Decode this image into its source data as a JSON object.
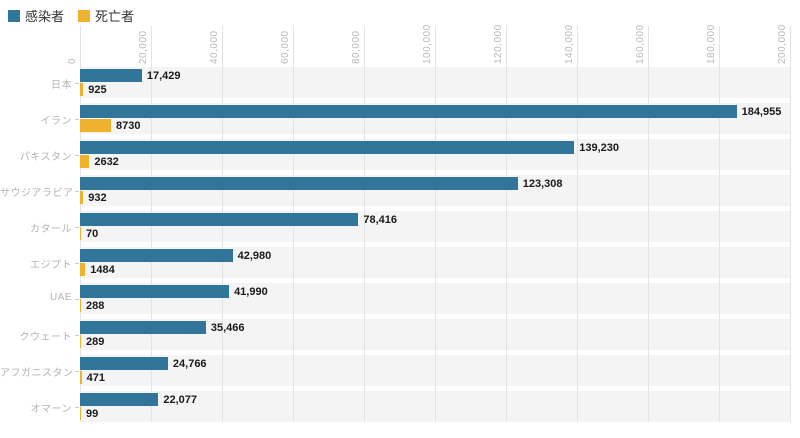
{
  "legend": {
    "items": [
      {
        "id": "infected",
        "label": "感染者",
        "color": "#31759B"
      },
      {
        "id": "deaths",
        "label": "死亡者",
        "color": "#EFB22D"
      }
    ]
  },
  "chart_data": {
    "type": "bar",
    "orientation": "horizontal",
    "title": "",
    "categories": [
      "日本",
      "イラン",
      "パキスタン",
      "サウジアラビア",
      "カタール",
      "エジプト",
      "UAE",
      "クウェート",
      "アフガニスタン",
      "オマーン"
    ],
    "series": [
      {
        "name": "感染者",
        "color": "#31759B",
        "values": [
          17429,
          184955,
          139230,
          123308,
          78416,
          42980,
          41990,
          35466,
          24766,
          22077
        ],
        "value_labels": [
          "17,429",
          "184,955",
          "139,230",
          "123,308",
          "78,416",
          "42,980",
          "41,990",
          "35,466",
          "24,766",
          "22,077"
        ]
      },
      {
        "name": "死亡者",
        "color": "#EFB22D",
        "values": [
          925,
          8730,
          2632,
          932,
          70,
          1484,
          288,
          289,
          471,
          99
        ],
        "value_labels": [
          "925",
          "8730",
          "2632",
          "932",
          "70",
          "1484",
          "288",
          "289",
          "471",
          "99"
        ]
      }
    ],
    "xlim": [
      0,
      200000
    ],
    "x_ticks": [
      0,
      20000,
      40000,
      60000,
      80000,
      100000,
      120000,
      140000,
      160000,
      180000,
      200000
    ],
    "x_tick_labels": [
      "0",
      "20,000",
      "40,000",
      "60,000",
      "80,000",
      "100,000",
      "120,000",
      "140,000",
      "160,000",
      "180,000",
      "200,000"
    ],
    "grid": "vertical",
    "legend_position": "top-left",
    "colors": {
      "band_background": "#F4F4F4",
      "gridline": "#E3E3E3",
      "axis_tick_label": "#B9B9B9",
      "category_label": "#B3B3B3",
      "value_label": "#1A1A1A"
    }
  }
}
